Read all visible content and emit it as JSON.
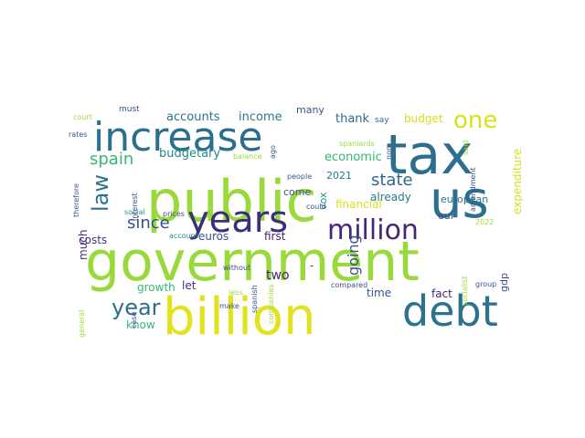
{
  "words": [
    {
      "text": "government",
      "color": "#9ad93b"
    },
    {
      "text": "public",
      "color": "#9ad93b"
    },
    {
      "text": "tax",
      "color": "#2c6e8e"
    },
    {
      "text": "billion",
      "color": "#e3e31d"
    },
    {
      "text": "increase",
      "color": "#2c6e8e"
    },
    {
      "text": "debt",
      "color": "#2c728e"
    },
    {
      "text": "us",
      "color": "#2c6e8e"
    },
    {
      "text": "years",
      "color": "#3a2f7a"
    },
    {
      "text": "million",
      "color": "#482677"
    },
    {
      "text": "year",
      "color": "#2c6e8e"
    },
    {
      "text": "one",
      "color": "#d8e219"
    },
    {
      "text": "law",
      "color": "#2c728e"
    },
    {
      "text": "spain",
      "color": "#35b779"
    },
    {
      "text": "since",
      "color": "#3a4f8a"
    },
    {
      "text": "going",
      "color": "#3b528b"
    },
    {
      "text": "state",
      "color": "#31688e"
    },
    {
      "text": "accounts",
      "color": "#2c728e"
    },
    {
      "text": "income",
      "color": "#2a788e"
    },
    {
      "text": "economic",
      "color": "#35b779"
    },
    {
      "text": "budgetary",
      "color": "#25858e"
    },
    {
      "text": "budget",
      "color": "#d4e11a"
    },
    {
      "text": "expenditure",
      "color": "#d4e11a"
    },
    {
      "text": "european",
      "color": "#2d708e"
    },
    {
      "text": "growth",
      "color": "#35b779"
    },
    {
      "text": "euros",
      "color": "#3b528b"
    },
    {
      "text": "costs",
      "color": "#472d7b"
    },
    {
      "text": "much",
      "color": "#472d7b"
    },
    {
      "text": "first",
      "color": "#481f70"
    },
    {
      "text": "2021",
      "color": "#2a788e"
    },
    {
      "text": "already",
      "color": "#2a788e"
    },
    {
      "text": "financial",
      "color": "#d8e219"
    },
    {
      "text": "time",
      "color": "#3b528b"
    },
    {
      "text": "fact",
      "color": "#481f70"
    },
    {
      "text": "two",
      "color": "#482677"
    },
    {
      "text": "let",
      "color": "#472d7b"
    },
    {
      "text": "know",
      "color": "#35b779"
    },
    {
      "text": "thank",
      "color": "#31688e"
    },
    {
      "text": "many",
      "color": "#3b528b"
    },
    {
      "text": "come",
      "color": "#3b528b"
    },
    {
      "text": "gdp",
      "color": "#3b528b"
    },
    {
      "text": "vox",
      "color": "#21918c"
    },
    {
      "text": "eur",
      "color": "#3b528b"
    },
    {
      "text": "say",
      "color": "#31688e"
    },
    {
      "text": "must",
      "color": "#3b528b"
    },
    {
      "text": "court",
      "color": "#9fda3a"
    },
    {
      "text": "rates",
      "color": "#3b528b"
    },
    {
      "text": "therefore",
      "color": "#3b528b"
    },
    {
      "text": "social",
      "color": "#21918c"
    },
    {
      "text": "general",
      "color": "#9fda3a"
    },
    {
      "text": "interest",
      "color": "#3b528b"
    },
    {
      "text": "case",
      "color": "#3b528b"
    },
    {
      "text": "prices",
      "color": "#3b528b"
    },
    {
      "text": "account",
      "color": "#21918c"
    },
    {
      "text": "balance",
      "color": "#9fda3a"
    },
    {
      "text": "ago",
      "color": "#3b528b"
    },
    {
      "text": "people",
      "color": "#3b528b"
    },
    {
      "text": "could",
      "color": "#3b528b"
    },
    {
      "text": "without",
      "color": "#3b528b"
    },
    {
      "text": "less",
      "color": "#9fda3a"
    },
    {
      "text": "make",
      "color": "#3b528b"
    },
    {
      "text": "spanish",
      "color": "#3b528b"
    },
    {
      "text": "companies",
      "color": "#9fda3a"
    },
    {
      "text": "compared",
      "color": "#3b528b"
    },
    {
      "text": "non",
      "color": "#3b528b"
    },
    {
      "text": "spaniards",
      "color": "#9fda3a"
    },
    {
      "text": "said",
      "color": "#9fda3a"
    },
    {
      "text": "socialist",
      "color": "#9fda3a"
    },
    {
      "text": "2022",
      "color": "#9fda3a"
    },
    {
      "text": "amendment",
      "color": "#3b528b"
    },
    {
      "text": "group",
      "color": "#3b528b"
    },
    {
      "text": "-",
      "color": "#3b528b"
    }
  ]
}
